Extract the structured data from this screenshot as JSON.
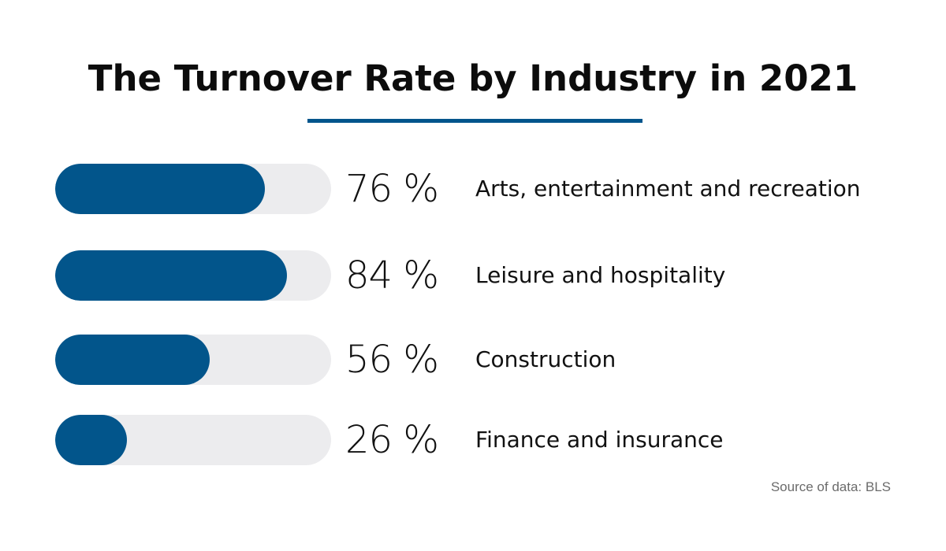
{
  "chart_data": {
    "type": "bar",
    "title": "The Turnover Rate by Industry in 2021",
    "categories": [
      "Arts, entertainment and recreation",
      "Leisure and hospitality",
      "Construction",
      "Finance and insurance"
    ],
    "values": [
      76,
      84,
      56,
      26
    ],
    "value_labels": [
      "76 %",
      "84 %",
      "56 %",
      "26 %"
    ],
    "ylim": [
      0,
      100
    ],
    "source": "Source of data: BLS",
    "colors": {
      "bar": "#02558b",
      "track": "#ececee",
      "accent_rule": "#00558c"
    }
  }
}
